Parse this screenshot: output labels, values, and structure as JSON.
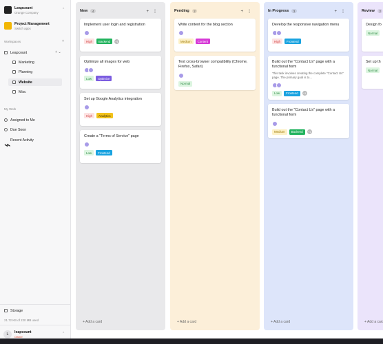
{
  "sidebar": {
    "org": {
      "name": "Leapcount",
      "subtitle": "Orange Company"
    },
    "project": {
      "name": "Project Management",
      "subtitle": "Switch apps"
    },
    "workspaces_label": "Workspaces",
    "workspace": {
      "name": "Leapcount",
      "items": [
        "Marketing",
        "Planning",
        "Website",
        "Misc"
      ]
    },
    "my_work": {
      "label": "My Work",
      "items": [
        "Assigned to Me",
        "Due Soon",
        "Recent Activity"
      ]
    },
    "storage": {
      "label": "Storage",
      "usage": "21.72 KB of 220 MB used"
    },
    "user": {
      "initial": "L",
      "name": "leapcount",
      "role": "Owner"
    }
  },
  "board": {
    "add_card": "+ Add a card",
    "columns": [
      {
        "name": "New",
        "count": 4,
        "color": "#e9e9eb",
        "cards": [
          {
            "title": "Implement user login and registration",
            "avatars": 1,
            "tags": [
              {
                "text": "High",
                "bg": "#fde2e2",
                "fg": "#d03a3a"
              },
              {
                "text": "Backend",
                "bg": "#22b35e",
                "fg": "#ffffff"
              }
            ],
            "more": "+1"
          },
          {
            "title": "Optimize all images for web",
            "avatars": 2,
            "tags": [
              {
                "text": "Low",
                "bg": "#dcf5e0",
                "fg": "#2f8a45"
              },
              {
                "text": "Optimize",
                "bg": "#7b5ce0",
                "fg": "#ffffff"
              }
            ]
          },
          {
            "title": "Set up Google Analytics integration",
            "avatars": 1,
            "tags": [
              {
                "text": "High",
                "bg": "#fde2e2",
                "fg": "#d03a3a"
              },
              {
                "text": "Analytics",
                "bg": "#f2c21b",
                "fg": "#3a2c00"
              }
            ]
          },
          {
            "title": "Create a \"Terms of Service\" page",
            "avatars": 1,
            "tags": [
              {
                "text": "Low",
                "bg": "#dcf5e0",
                "fg": "#2f8a45"
              },
              {
                "text": "Frontend",
                "bg": "#1aa3e0",
                "fg": "#ffffff"
              }
            ]
          }
        ]
      },
      {
        "name": "Pending",
        "count": 2,
        "color": "#fcefd9",
        "cards": [
          {
            "title": "Write content for the blog section",
            "avatars": 1,
            "tags": [
              {
                "text": "Medium",
                "bg": "#fdf1c6",
                "fg": "#9a7400"
              },
              {
                "text": "Content",
                "bg": "#d63ad6",
                "fg": "#ffffff"
              }
            ]
          },
          {
            "title": "Test cross-browser compatibility (Chrome, Firefox, Safari)",
            "avatars": 1,
            "tags": [
              {
                "text": "Normal",
                "bg": "#dcf5e0",
                "fg": "#2f8a45"
              }
            ]
          }
        ]
      },
      {
        "name": "In Progress",
        "count": 3,
        "color": "#dde5fa",
        "cards": [
          {
            "title": "Develop the responsive navigation menu",
            "avatars": 2,
            "tags": [
              {
                "text": "High",
                "bg": "#fde2e2",
                "fg": "#d03a3a"
              },
              {
                "text": "Frontend",
                "bg": "#1aa3e0",
                "fg": "#ffffff"
              }
            ]
          },
          {
            "title": "Build out the \"Contact Us\" page with a functional form",
            "description": "This task involves creating the complete \"Contact Us\" page. The primary goal is to...",
            "avatars": 2,
            "tags": [
              {
                "text": "Low",
                "bg": "#dcf5e0",
                "fg": "#2f8a45"
              },
              {
                "text": "Frontend",
                "bg": "#1aa3e0",
                "fg": "#ffffff"
              }
            ],
            "more": "+1"
          },
          {
            "title": "Build out the \"Contact Us\" page with a functional form",
            "avatars": 1,
            "tags": [
              {
                "text": "Medium",
                "bg": "#fdf1c6",
                "fg": "#9a7400"
              },
              {
                "text": "Backend",
                "bg": "#22b35e",
                "fg": "#ffffff"
              }
            ],
            "more": "+1"
          }
        ]
      },
      {
        "name": "Review",
        "count": 2,
        "color": "#ebe4fb",
        "cards": [
          {
            "title": "Design fo",
            "tags": [
              {
                "text": "Normal",
                "bg": "#dcf5e0",
                "fg": "#2f8a45"
              }
            ]
          },
          {
            "title": "Set up th",
            "tags": [
              {
                "text": "Normal",
                "bg": "#dcf5e0",
                "fg": "#2f8a45"
              }
            ]
          }
        ]
      }
    ]
  }
}
